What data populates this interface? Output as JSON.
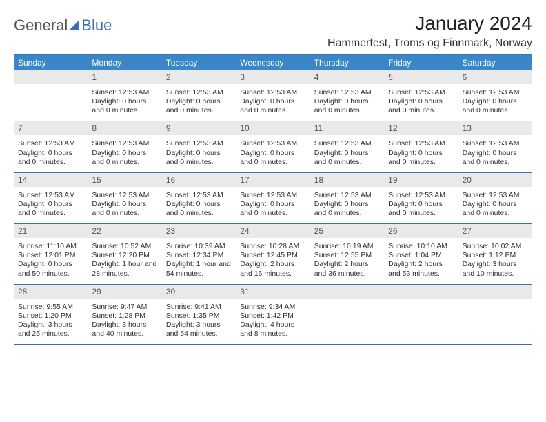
{
  "logo": {
    "part1": "General",
    "part2": "Blue"
  },
  "title": "January 2024",
  "location": "Hammerfest, Troms og Finnmark, Norway",
  "colors": {
    "header_bg": "#3a87c8",
    "border": "#3a6fb0",
    "daynum_bg": "#e9e9e9",
    "text": "#333333"
  },
  "daysOfWeek": [
    "Sunday",
    "Monday",
    "Tuesday",
    "Wednesday",
    "Thursday",
    "Friday",
    "Saturday"
  ],
  "weeks": [
    {
      "nums": [
        "",
        "1",
        "2",
        "3",
        "4",
        "5",
        "6"
      ],
      "cells": [
        [],
        [
          "Sunset: 12:53 AM",
          "Daylight: 0 hours",
          "and 0 minutes."
        ],
        [
          "Sunset: 12:53 AM",
          "Daylight: 0 hours",
          "and 0 minutes."
        ],
        [
          "Sunset: 12:53 AM",
          "Daylight: 0 hours",
          "and 0 minutes."
        ],
        [
          "Sunset: 12:53 AM",
          "Daylight: 0 hours",
          "and 0 minutes."
        ],
        [
          "Sunset: 12:53 AM",
          "Daylight: 0 hours",
          "and 0 minutes."
        ],
        [
          "Sunset: 12:53 AM",
          "Daylight: 0 hours",
          "and 0 minutes."
        ]
      ]
    },
    {
      "nums": [
        "7",
        "8",
        "9",
        "10",
        "11",
        "12",
        "13"
      ],
      "cells": [
        [
          "Sunset: 12:53 AM",
          "Daylight: 0 hours",
          "and 0 minutes."
        ],
        [
          "Sunset: 12:53 AM",
          "Daylight: 0 hours",
          "and 0 minutes."
        ],
        [
          "Sunset: 12:53 AM",
          "Daylight: 0 hours",
          "and 0 minutes."
        ],
        [
          "Sunset: 12:53 AM",
          "Daylight: 0 hours",
          "and 0 minutes."
        ],
        [
          "Sunset: 12:53 AM",
          "Daylight: 0 hours",
          "and 0 minutes."
        ],
        [
          "Sunset: 12:53 AM",
          "Daylight: 0 hours",
          "and 0 minutes."
        ],
        [
          "Sunset: 12:53 AM",
          "Daylight: 0 hours",
          "and 0 minutes."
        ]
      ]
    },
    {
      "nums": [
        "14",
        "15",
        "16",
        "17",
        "18",
        "19",
        "20"
      ],
      "cells": [
        [
          "Sunset: 12:53 AM",
          "Daylight: 0 hours",
          "and 0 minutes."
        ],
        [
          "Sunset: 12:53 AM",
          "Daylight: 0 hours",
          "and 0 minutes."
        ],
        [
          "Sunset: 12:53 AM",
          "Daylight: 0 hours",
          "and 0 minutes."
        ],
        [
          "Sunset: 12:53 AM",
          "Daylight: 0 hours",
          "and 0 minutes."
        ],
        [
          "Sunset: 12:53 AM",
          "Daylight: 0 hours",
          "and 0 minutes."
        ],
        [
          "Sunset: 12:53 AM",
          "Daylight: 0 hours",
          "and 0 minutes."
        ],
        [
          "Sunset: 12:53 AM",
          "Daylight: 0 hours",
          "and 0 minutes."
        ]
      ]
    },
    {
      "nums": [
        "21",
        "22",
        "23",
        "24",
        "25",
        "26",
        "27"
      ],
      "cells": [
        [
          "Sunrise: 11:10 AM",
          "Sunset: 12:01 PM",
          "Daylight: 0 hours",
          "and 50 minutes."
        ],
        [
          "Sunrise: 10:52 AM",
          "Sunset: 12:20 PM",
          "Daylight: 1 hour and",
          "28 minutes."
        ],
        [
          "Sunrise: 10:39 AM",
          "Sunset: 12:34 PM",
          "Daylight: 1 hour and",
          "54 minutes."
        ],
        [
          "Sunrise: 10:28 AM",
          "Sunset: 12:45 PM",
          "Daylight: 2 hours",
          "and 16 minutes."
        ],
        [
          "Sunrise: 10:19 AM",
          "Sunset: 12:55 PM",
          "Daylight: 2 hours",
          "and 36 minutes."
        ],
        [
          "Sunrise: 10:10 AM",
          "Sunset: 1:04 PM",
          "Daylight: 2 hours",
          "and 53 minutes."
        ],
        [
          "Sunrise: 10:02 AM",
          "Sunset: 1:12 PM",
          "Daylight: 3 hours",
          "and 10 minutes."
        ]
      ]
    },
    {
      "nums": [
        "28",
        "29",
        "30",
        "31",
        "",
        "",
        ""
      ],
      "cells": [
        [
          "Sunrise: 9:55 AM",
          "Sunset: 1:20 PM",
          "Daylight: 3 hours",
          "and 25 minutes."
        ],
        [
          "Sunrise: 9:47 AM",
          "Sunset: 1:28 PM",
          "Daylight: 3 hours",
          "and 40 minutes."
        ],
        [
          "Sunrise: 9:41 AM",
          "Sunset: 1:35 PM",
          "Daylight: 3 hours",
          "and 54 minutes."
        ],
        [
          "Sunrise: 9:34 AM",
          "Sunset: 1:42 PM",
          "Daylight: 4 hours",
          "and 8 minutes."
        ],
        [],
        [],
        []
      ]
    }
  ]
}
